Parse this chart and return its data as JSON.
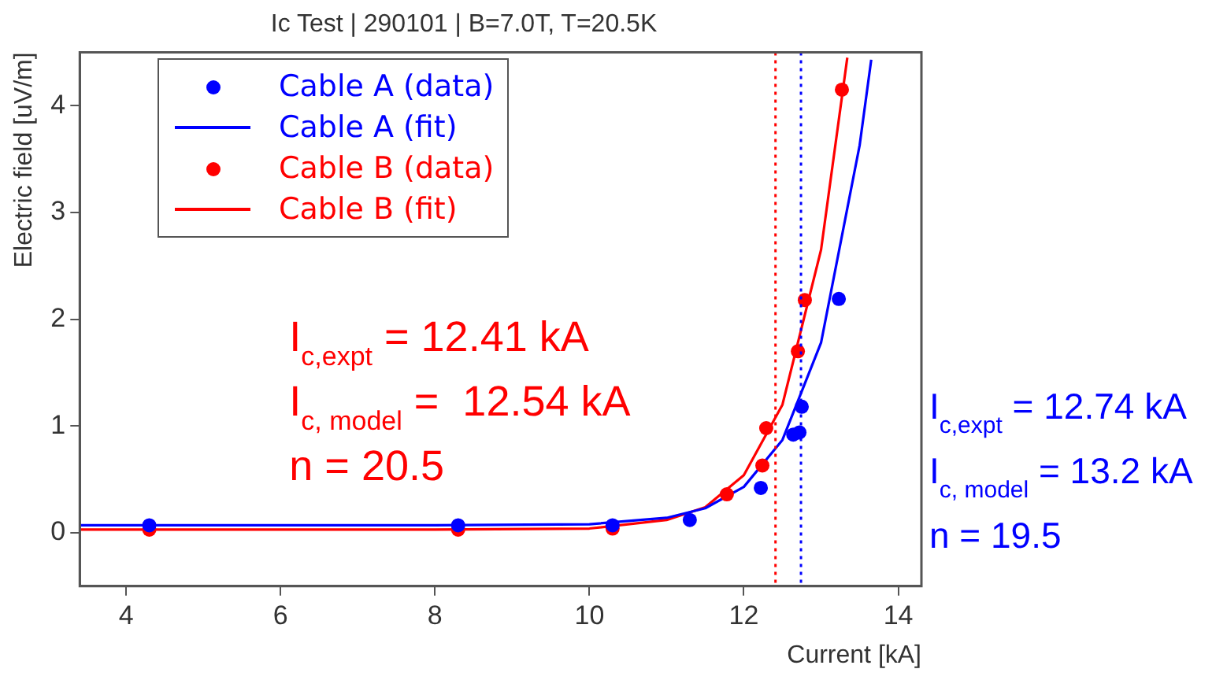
{
  "chart_data": {
    "type": "scatter",
    "title": "Ic Test | 290101 | B=7.0T, T=20.5K",
    "xlabel": "Current [kA]",
    "ylabel": "Electric field [uV/m]",
    "xlim": [
      3.4,
      14.3
    ],
    "xticks": [
      4,
      6,
      8,
      10,
      12,
      14
    ],
    "ylim": [
      -0.5,
      4.5
    ],
    "yticks": [
      0,
      1,
      2,
      3,
      4
    ],
    "marker": "circle",
    "legend": "top left",
    "series": [
      {
        "name": "Cable A (data)",
        "color": "#0000ff",
        "x": [
          4.3,
          8.3,
          10.3,
          11.3,
          12.22,
          12.64,
          12.72,
          12.75,
          13.23
        ],
        "values": [
          0.07,
          0.07,
          0.07,
          0.12,
          0.42,
          0.92,
          0.94,
          1.18,
          2.19
        ]
      },
      {
        "name": "Cable A (fit)",
        "type": "line",
        "marker": "none",
        "color": "#0000ff",
        "x": [
          3.4,
          8,
          10,
          11,
          11.5,
          12,
          12.5,
          13,
          13.5,
          13.65
        ],
        "values": [
          0.07,
          0.07,
          0.08,
          0.14,
          0.23,
          0.43,
          0.87,
          1.78,
          3.63,
          4.43
        ]
      },
      {
        "name": "Cable B (data)",
        "color": "#ff0000",
        "x": [
          4.3,
          8.3,
          10.3,
          11.78,
          12.24,
          12.29,
          12.7,
          12.79,
          13.27
        ],
        "values": [
          0.03,
          0.03,
          0.04,
          0.36,
          0.63,
          0.98,
          1.7,
          2.18,
          4.15
        ]
      },
      {
        "name": "Cable B (fit)",
        "type": "line",
        "marker": "none",
        "color": "#ff0000",
        "x": [
          3.4,
          8,
          10,
          11,
          11.5,
          12,
          12.5,
          13,
          13.34
        ],
        "values": [
          0.03,
          0.03,
          0.04,
          0.12,
          0.24,
          0.54,
          1.2,
          2.65,
          4.45
        ]
      }
    ],
    "ref_lines": [
      {
        "axis": "x",
        "value": 12.41,
        "color": "#ff0000",
        "line_style": "dotted"
      },
      {
        "axis": "x",
        "value": 12.74,
        "color": "#0000ff",
        "line_style": "dotted"
      }
    ],
    "annotations": [
      "I$_{c,expt}$ = 12.41 kA",
      "I$_{c, model}$ =  12.54 kA",
      "n = 20.5",
      "I$_{c,expt}$ = 12.74 kA",
      "I$_{c, model}$ = 13.2 kA",
      "n = 19.5"
    ]
  }
}
